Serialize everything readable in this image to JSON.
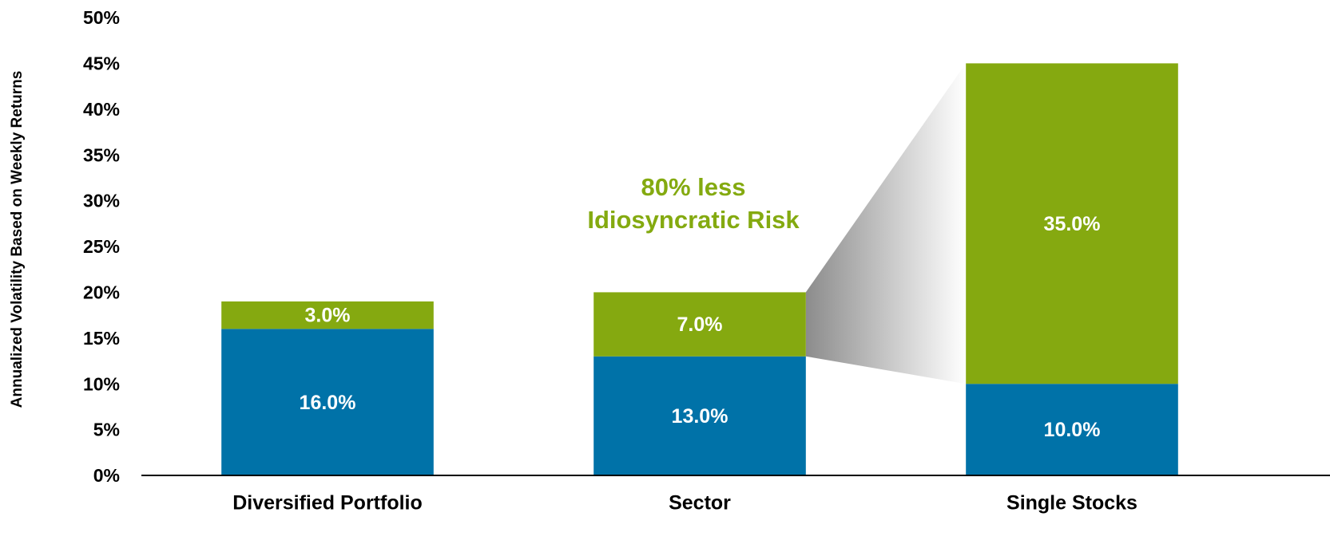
{
  "chart_data": {
    "type": "stacked_bar",
    "y_label": "Annualized Volatility Based on Weekly Returns",
    "annotation": [
      "80% less",
      "Idiosyncratic Risk"
    ],
    "categories": [
      "Diversified Portfolio",
      "Sector",
      "Single Stocks"
    ],
    "series": [
      {
        "color": "#0072a8",
        "values": [
          16,
          13,
          10
        ],
        "value_labels": [
          "16.0%",
          "13.0%",
          "10.0%"
        ]
      },
      {
        "color": "#85a910",
        "values": [
          3,
          7,
          35
        ],
        "value_labels": [
          "3.0%",
          "7.0%",
          "35.0%"
        ]
      }
    ],
    "ylim": [
      0,
      50
    ],
    "yticks": [
      {
        "value": 0,
        "label": "0%"
      },
      {
        "value": 5,
        "label": "5%"
      },
      {
        "value": 10,
        "label": "10%"
      },
      {
        "value": 15,
        "label": "15%"
      },
      {
        "value": 20,
        "label": "20%"
      },
      {
        "value": 25,
        "label": "25%"
      },
      {
        "value": 30,
        "label": "30%"
      },
      {
        "value": 35,
        "label": "35%"
      },
      {
        "value": 40,
        "label": "40%"
      },
      {
        "value": 45,
        "label": "45%"
      },
      {
        "value": 50,
        "label": "50%"
      }
    ]
  }
}
